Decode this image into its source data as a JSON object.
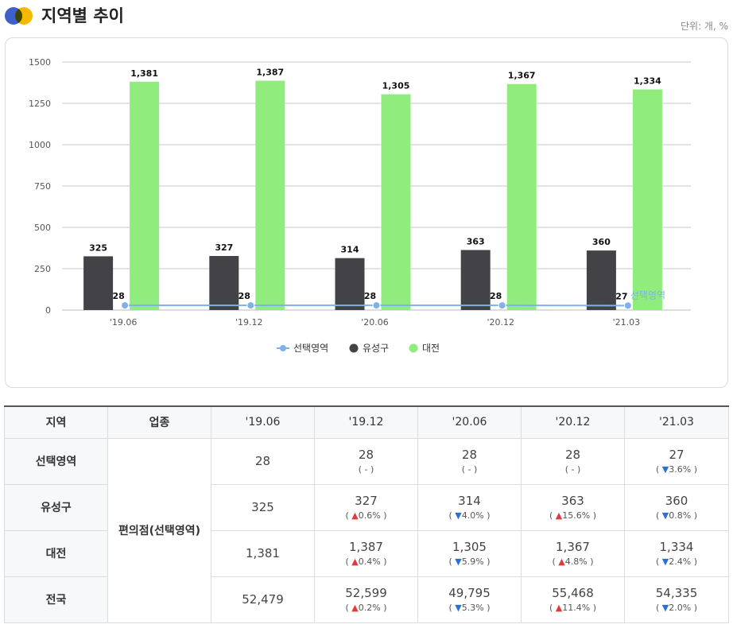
{
  "header": {
    "title": "지역별 추이",
    "unit": "단위: 개, %"
  },
  "colors": {
    "logo_left": "#3f5fc9",
    "logo_right": "#f5b800",
    "series_selected": "#7fb1e8",
    "series_yuseong": "#434347",
    "series_daejeon": "#90ed7d",
    "up": "#e03a3a",
    "down": "#2c6fd8"
  },
  "chart_data": {
    "type": "bar",
    "categories": [
      "'19.06",
      "'19.12",
      "'20.06",
      "'20.12",
      "'21.03"
    ],
    "ylim": [
      0,
      1500
    ],
    "yticks": [
      "0",
      "250",
      "500",
      "750",
      "1000",
      "1250",
      "1500"
    ],
    "grid": true,
    "legend_position": "bottom",
    "series": [
      {
        "name": "선택영역",
        "kind": "line",
        "values": [
          28,
          28,
          28,
          28,
          27
        ],
        "labels": [
          "28",
          "28",
          "28",
          "28",
          "27"
        ],
        "end_label": "선택영역"
      },
      {
        "name": "유성구",
        "kind": "bar",
        "values": [
          325,
          327,
          314,
          363,
          360
        ],
        "labels": [
          "325",
          "327",
          "314",
          "363",
          "360"
        ]
      },
      {
        "name": "대전",
        "kind": "bar",
        "values": [
          1381,
          1387,
          1305,
          1367,
          1334
        ],
        "labels": [
          "1,381",
          "1,387",
          "1,305",
          "1,367",
          "1,334"
        ]
      }
    ]
  },
  "table": {
    "headers": [
      "지역",
      "업종",
      "'19.06",
      "'19.12",
      "'20.06",
      "'20.12",
      "'21.03"
    ],
    "category": "편의점(선택영역)",
    "rows": [
      {
        "region": "선택영역",
        "cells": [
          {
            "value": "28",
            "change": "",
            "dir": ""
          },
          {
            "value": "28",
            "change": "( - )",
            "dir": ""
          },
          {
            "value": "28",
            "change": "( - )",
            "dir": ""
          },
          {
            "value": "28",
            "change": "( - )",
            "dir": ""
          },
          {
            "value": "27",
            "change": "3.6%",
            "dir": "down"
          }
        ]
      },
      {
        "region": "유성구",
        "cells": [
          {
            "value": "325",
            "change": "",
            "dir": ""
          },
          {
            "value": "327",
            "change": "0.6%",
            "dir": "up"
          },
          {
            "value": "314",
            "change": "4.0%",
            "dir": "down"
          },
          {
            "value": "363",
            "change": "15.6%",
            "dir": "up"
          },
          {
            "value": "360",
            "change": "0.8%",
            "dir": "down"
          }
        ]
      },
      {
        "region": "대전",
        "cells": [
          {
            "value": "1,381",
            "change": "",
            "dir": ""
          },
          {
            "value": "1,387",
            "change": "0.4%",
            "dir": "up"
          },
          {
            "value": "1,305",
            "change": "5.9%",
            "dir": "down"
          },
          {
            "value": "1,367",
            "change": "4.8%",
            "dir": "up"
          },
          {
            "value": "1,334",
            "change": "2.4%",
            "dir": "down"
          }
        ]
      },
      {
        "region": "전국",
        "cells": [
          {
            "value": "52,479",
            "change": "",
            "dir": ""
          },
          {
            "value": "52,599",
            "change": "0.2%",
            "dir": "up"
          },
          {
            "value": "49,795",
            "change": "5.3%",
            "dir": "down"
          },
          {
            "value": "55,468",
            "change": "11.4%",
            "dir": "up"
          },
          {
            "value": "54,335",
            "change": "2.0%",
            "dir": "down"
          }
        ]
      }
    ]
  }
}
